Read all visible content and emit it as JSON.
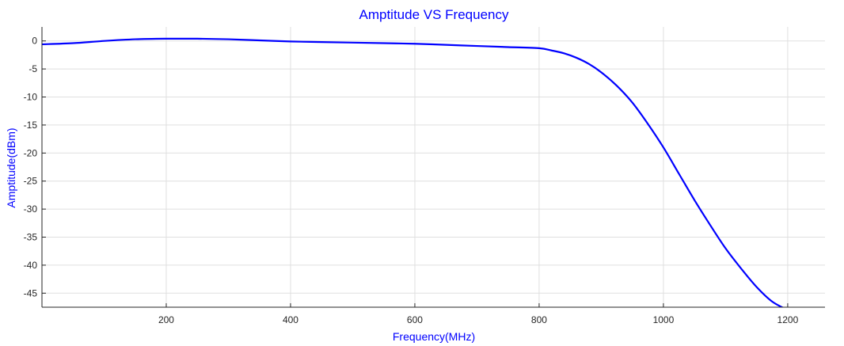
{
  "chart_data": {
    "type": "line",
    "title": "Amptitude VS Frequency",
    "xlabel": "Frequency(MHz)",
    "ylabel": "Amptitude(dBm)",
    "xlim": [
      0,
      1260
    ],
    "ylim": [
      -47.5,
      2.5
    ],
    "xticks": [
      200,
      400,
      600,
      800,
      1000,
      1200
    ],
    "yticks": [
      0,
      -5,
      -10,
      -15,
      -20,
      -25,
      -30,
      -35,
      -40,
      -45
    ],
    "grid": true,
    "colors": {
      "text": "#0000ff",
      "line": "#0000ff",
      "grid": "#dfdfdf",
      "axis": "#262626"
    },
    "series": [
      {
        "x": [
          0,
          50,
          100,
          150,
          200,
          250,
          300,
          350,
          400,
          450,
          500,
          550,
          600,
          650,
          700,
          750,
          800,
          820,
          840,
          860,
          880,
          900,
          925,
          950,
          975,
          1000,
          1025,
          1050,
          1075,
          1100,
          1125,
          1150,
          1175,
          1200
        ],
        "y": [
          -0.6,
          -0.4,
          0.0,
          0.3,
          0.4,
          0.4,
          0.3,
          0.1,
          -0.1,
          -0.2,
          -0.3,
          -0.4,
          -0.5,
          -0.7,
          -0.9,
          -1.1,
          -1.3,
          -1.7,
          -2.2,
          -3.0,
          -4.1,
          -5.6,
          -8.0,
          -11.0,
          -14.8,
          -19.0,
          -23.7,
          -28.4,
          -32.8,
          -37.0,
          -40.6,
          -43.9,
          -46.5,
          -48.0
        ]
      }
    ]
  }
}
